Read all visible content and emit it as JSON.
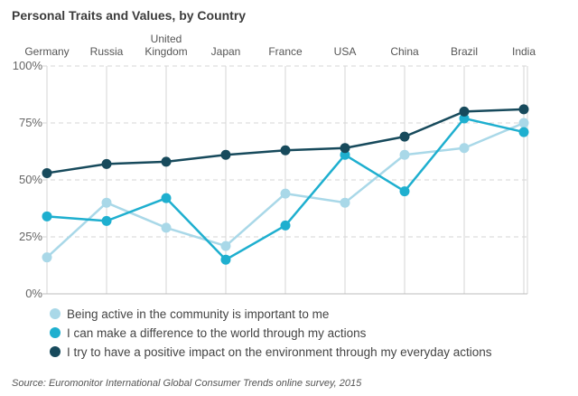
{
  "chart_data": {
    "type": "line",
    "title": "Personal Traits and Values, by Country",
    "categories": [
      "Germany",
      "Russia",
      "United Kingdom",
      "Japan",
      "France",
      "USA",
      "China",
      "Brazil",
      "India"
    ],
    "category_lines": [
      [
        "Germany"
      ],
      [
        "Russia"
      ],
      [
        "United",
        "Kingdom"
      ],
      [
        "Japan"
      ],
      [
        "France"
      ],
      [
        "USA"
      ],
      [
        "China"
      ],
      [
        "Brazil"
      ],
      [
        "India"
      ]
    ],
    "y_ticks": [
      "0%",
      "25%",
      "50%",
      "75%",
      "100%"
    ],
    "ylim": [
      0,
      100
    ],
    "grid": "horizontal-dashed",
    "legend_position": "bottom",
    "series": [
      {
        "name": "Being active in the community is important to me",
        "color": "#a9d8e8",
        "values": [
          16,
          40,
          29,
          21,
          44,
          40,
          61,
          64,
          75
        ]
      },
      {
        "name": "I can make a difference to the world through my actions",
        "color": "#1eafcf",
        "values": [
          34,
          32,
          42,
          15,
          30,
          61,
          45,
          77,
          71
        ]
      },
      {
        "name": "I try to have a positive impact on the environment through my everyday actions",
        "color": "#174a5c",
        "values": [
          53,
          57,
          58,
          61,
          63,
          64,
          69,
          80,
          81
        ]
      }
    ],
    "source": "Source: Euromonitor International Global Consumer Trends online survey, 2015"
  }
}
